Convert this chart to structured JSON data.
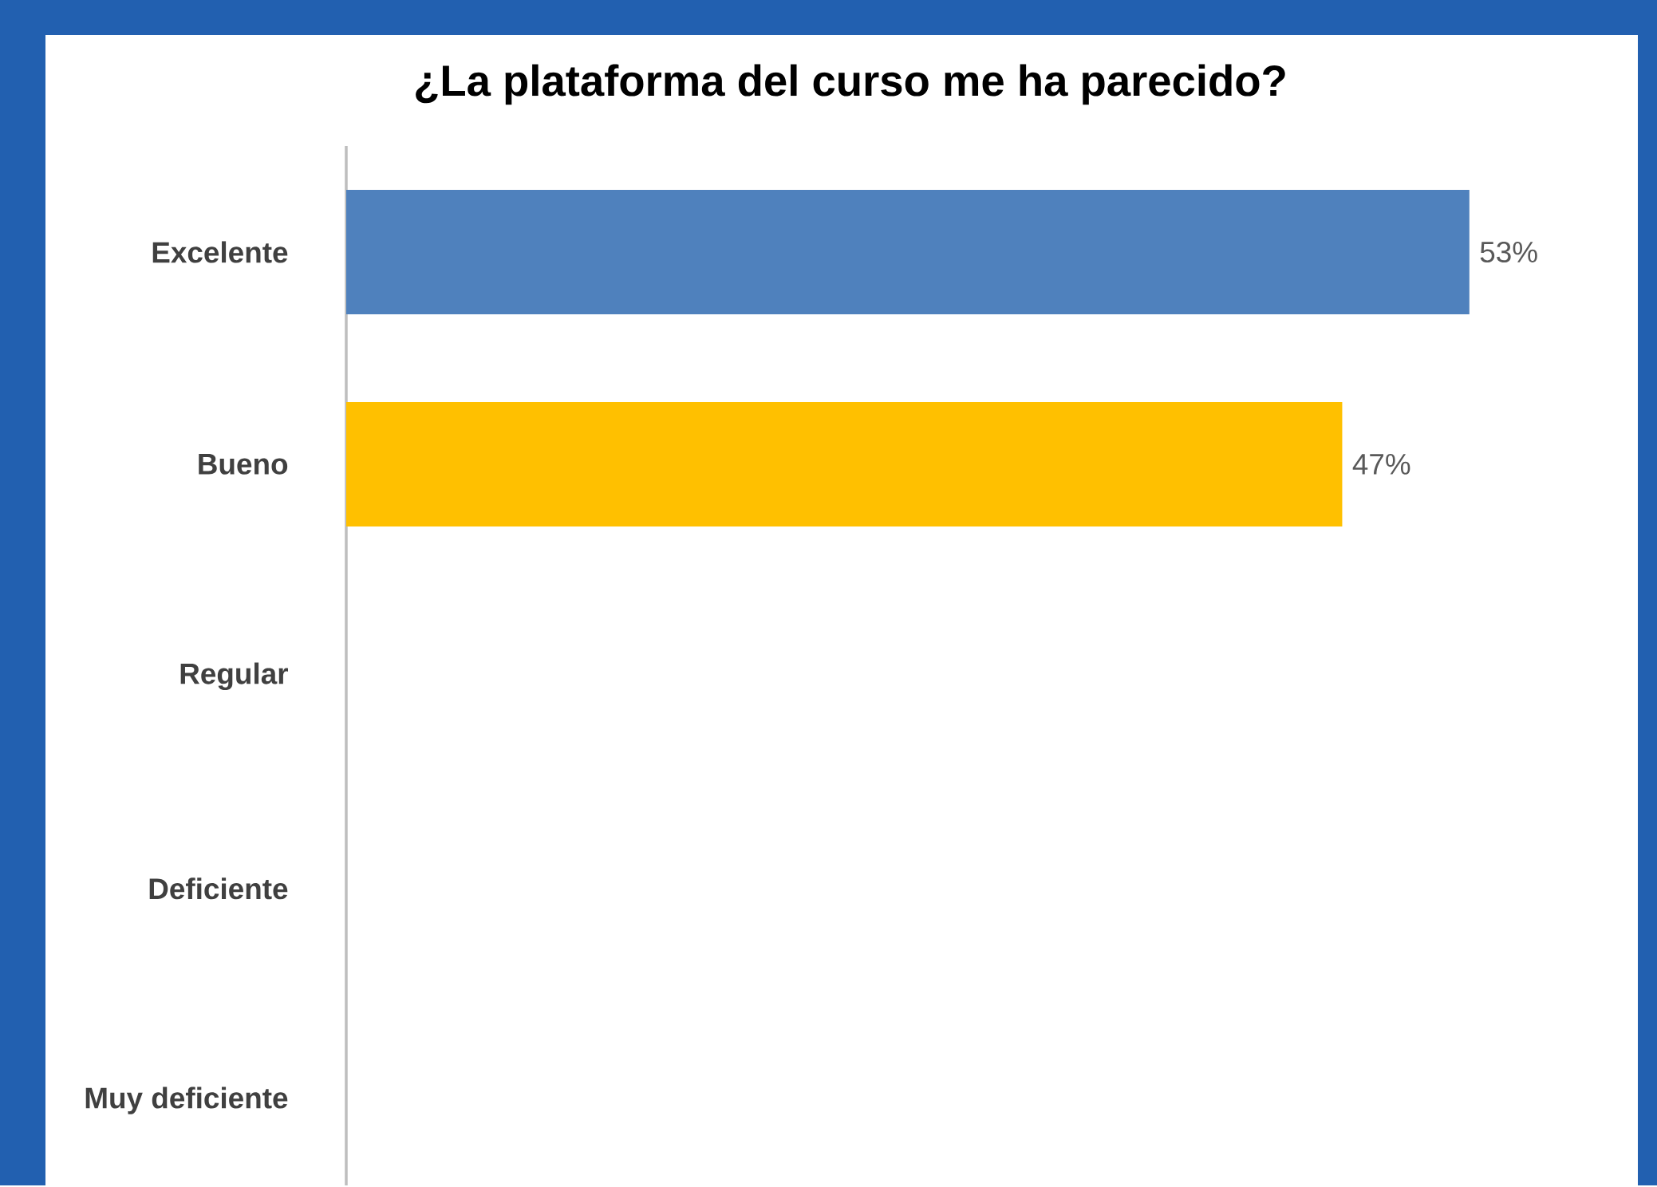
{
  "chart_data": {
    "type": "bar",
    "orientation": "horizontal",
    "title": "¿La plataforma del curso me ha parecido?",
    "categories": [
      "Excelente",
      "Bueno",
      "Regular",
      "Deficiente",
      "Muy deficiente"
    ],
    "values": [
      53,
      47,
      0,
      0,
      0
    ],
    "colors": [
      "#4f81bd",
      "#ffc000",
      "#4f81bd",
      "#4f81bd",
      "#4f81bd"
    ],
    "value_labels": [
      "53%",
      "47%",
      null,
      null,
      null
    ]
  }
}
